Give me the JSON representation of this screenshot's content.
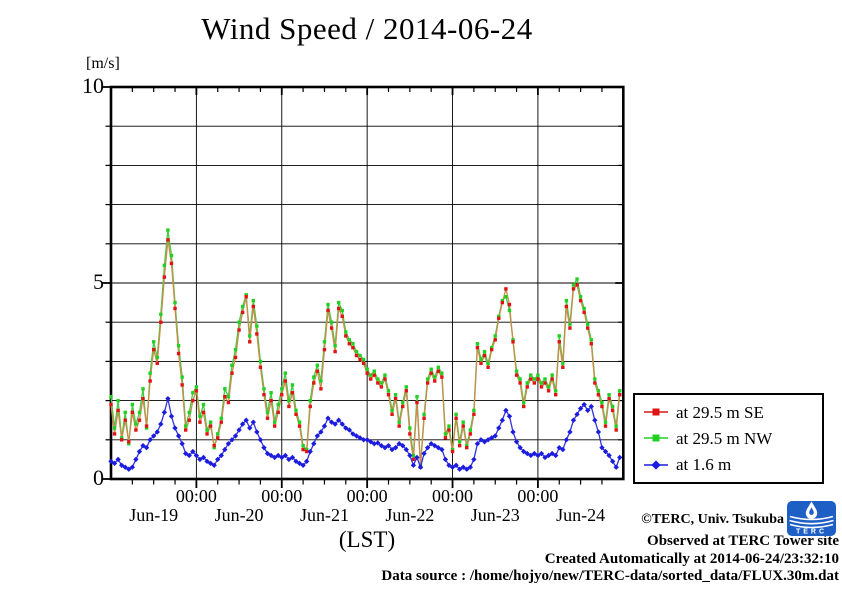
{
  "chart_data": {
    "type": "line",
    "title": "Wind Speed / 2014-06-24",
    "y_units_label": "[m/s]",
    "xlabel": "(LST)",
    "ylim": [
      0,
      10
    ],
    "y_gridline_interval": 1,
    "y_major_ticks": [
      {
        "value": 0,
        "label": "0"
      },
      {
        "value": 5,
        "label": "5"
      },
      {
        "value": 10,
        "label": "10"
      }
    ],
    "x_start": "2014-06-19 00:00",
    "x_end": "2014-06-24 23:00",
    "x_point_interval_hours": 1,
    "x_minor_tick_hours": 6,
    "x_midnight_label": "00:00",
    "x_day_labels": [
      "Jun-19",
      "Jun-20",
      "Jun-21",
      "Jun-22",
      "Jun-23",
      "Jun-24"
    ],
    "grid": true,
    "legend_position": "outside-right",
    "series": [
      {
        "name": "at 29.5 m SE",
        "marker": "square",
        "marker_color": "#e01414",
        "line_color": "#cf8a4f",
        "values": [
          1.9,
          1.15,
          1.75,
          1.0,
          1.5,
          0.95,
          1.7,
          1.25,
          1.5,
          2.05,
          1.35,
          2.5,
          3.3,
          2.95,
          4.0,
          5.15,
          6.1,
          5.5,
          4.35,
          3.2,
          2.4,
          1.25,
          1.5,
          2.0,
          2.25,
          1.45,
          1.7,
          1.15,
          1.35,
          0.85,
          1.05,
          1.45,
          2.1,
          1.95,
          2.7,
          3.1,
          3.8,
          4.25,
          4.65,
          3.5,
          4.4,
          3.7,
          2.85,
          2.15,
          1.55,
          2.0,
          1.35,
          1.7,
          2.15,
          2.5,
          1.85,
          2.2,
          1.65,
          1.35,
          0.75,
          0.7,
          1.85,
          2.45,
          2.75,
          2.3,
          3.3,
          4.3,
          3.85,
          3.25,
          4.35,
          4.15,
          3.65,
          3.45,
          3.35,
          3.15,
          3.05,
          2.95,
          2.7,
          2.55,
          2.65,
          2.45,
          2.35,
          2.55,
          2.15,
          1.65,
          2.05,
          1.35,
          1.85,
          2.25,
          1.15,
          0.5,
          1.95,
          0.3,
          1.55,
          2.45,
          2.7,
          2.5,
          2.75,
          2.6,
          1.05,
          1.25,
          0.7,
          1.55,
          0.85,
          1.35,
          0.8,
          1.15,
          1.65,
          3.35,
          2.95,
          3.15,
          2.85,
          3.3,
          3.55,
          4.1,
          4.5,
          4.85,
          4.45,
          3.5,
          2.65,
          2.45,
          1.85,
          2.35,
          2.55,
          2.45,
          2.55,
          2.35,
          2.45,
          2.25,
          2.55,
          2.15,
          3.5,
          2.85,
          4.4,
          3.85,
          4.85,
          4.95,
          4.55,
          4.25,
          3.85,
          3.45,
          2.45,
          2.15,
          1.85,
          1.35,
          2.05,
          1.75,
          1.25,
          2.15
        ]
      },
      {
        "name": "at 29.5 m NW",
        "marker": "square",
        "marker_color": "#22d022",
        "line_color": "#44cc44",
        "values": [
          2.1,
          1.3,
          2.0,
          1.05,
          1.7,
          0.9,
          1.9,
          1.4,
          1.7,
          2.3,
          1.3,
          2.7,
          3.5,
          3.1,
          4.2,
          5.45,
          6.35,
          5.7,
          4.5,
          3.4,
          2.6,
          1.35,
          1.7,
          2.2,
          2.35,
          1.6,
          1.9,
          1.25,
          1.45,
          0.8,
          1.15,
          1.55,
          2.3,
          2.1,
          2.9,
          3.3,
          4.0,
          4.4,
          4.7,
          3.65,
          4.55,
          3.9,
          3.0,
          2.3,
          1.7,
          2.2,
          1.45,
          1.9,
          2.3,
          2.7,
          2.0,
          2.4,
          1.75,
          1.45,
          0.85,
          0.75,
          2.0,
          2.6,
          2.9,
          2.5,
          3.5,
          4.45,
          4.0,
          3.4,
          4.5,
          4.3,
          3.75,
          3.55,
          3.45,
          3.25,
          3.15,
          3.05,
          2.8,
          2.65,
          2.75,
          2.55,
          2.45,
          2.65,
          2.25,
          1.75,
          2.15,
          1.45,
          1.95,
          2.35,
          1.3,
          0.6,
          2.1,
          0.35,
          1.65,
          2.55,
          2.8,
          2.6,
          2.85,
          2.7,
          1.15,
          1.35,
          0.75,
          1.65,
          0.95,
          1.45,
          0.85,
          1.25,
          1.75,
          3.45,
          3.05,
          3.25,
          2.95,
          3.35,
          3.65,
          4.15,
          4.55,
          4.65,
          4.3,
          3.55,
          2.75,
          2.55,
          1.95,
          2.45,
          2.65,
          2.55,
          2.65,
          2.45,
          2.55,
          2.35,
          2.65,
          2.25,
          3.65,
          2.95,
          4.55,
          3.95,
          4.95,
          5.1,
          4.65,
          4.35,
          3.95,
          3.55,
          2.55,
          2.25,
          1.95,
          1.45,
          2.15,
          1.85,
          1.35,
          2.25
        ]
      },
      {
        "name": "at 1.6 m",
        "marker": "diamond",
        "marker_color": "#1c1cdf",
        "line_color": "#3333dd",
        "values": [
          0.45,
          0.4,
          0.5,
          0.35,
          0.3,
          0.25,
          0.3,
          0.5,
          0.7,
          0.85,
          0.8,
          1.0,
          1.1,
          1.2,
          1.4,
          1.7,
          2.05,
          1.6,
          1.3,
          1.1,
          0.9,
          0.65,
          0.6,
          0.7,
          0.6,
          0.5,
          0.55,
          0.45,
          0.4,
          0.35,
          0.5,
          0.6,
          0.75,
          0.9,
          1.0,
          1.1,
          1.25,
          1.4,
          1.5,
          1.3,
          1.45,
          1.2,
          1.0,
          0.8,
          0.65,
          0.6,
          0.55,
          0.6,
          0.55,
          0.6,
          0.5,
          0.55,
          0.45,
          0.4,
          0.35,
          0.45,
          0.7,
          0.9,
          1.1,
          1.2,
          1.35,
          1.55,
          1.45,
          1.4,
          1.5,
          1.4,
          1.3,
          1.25,
          1.15,
          1.1,
          1.05,
          1.0,
          1.0,
          0.95,
          0.9,
          0.92,
          0.85,
          0.8,
          0.85,
          0.75,
          0.8,
          0.9,
          0.85,
          0.75,
          0.6,
          0.35,
          0.55,
          0.3,
          0.65,
          0.8,
          0.9,
          0.85,
          0.8,
          0.75,
          0.5,
          0.35,
          0.3,
          0.35,
          0.25,
          0.3,
          0.25,
          0.3,
          0.5,
          0.9,
          1.0,
          0.95,
          1.0,
          1.05,
          1.1,
          1.3,
          1.5,
          1.75,
          1.6,
          1.2,
          0.95,
          0.8,
          0.7,
          0.65,
          0.6,
          0.65,
          0.6,
          0.65,
          0.55,
          0.6,
          0.65,
          0.6,
          0.8,
          0.75,
          1.0,
          1.2,
          1.5,
          1.65,
          1.8,
          1.9,
          1.75,
          1.85,
          1.5,
          1.2,
          0.8,
          0.7,
          0.6,
          0.45,
          0.3,
          0.55
        ]
      }
    ]
  },
  "footer": {
    "copyright": "©TERC, Univ. Tsukuba",
    "observed": "Observed at TERC Tower site",
    "created": "Created Automatically at 2014-06-24/23:32:10",
    "data_source": "Data source : /home/hojyo/new/TERC-data/sorted_data/FLUX.30m.dat",
    "logo_text": "TERC",
    "logo_color": "#1e5fc6"
  }
}
